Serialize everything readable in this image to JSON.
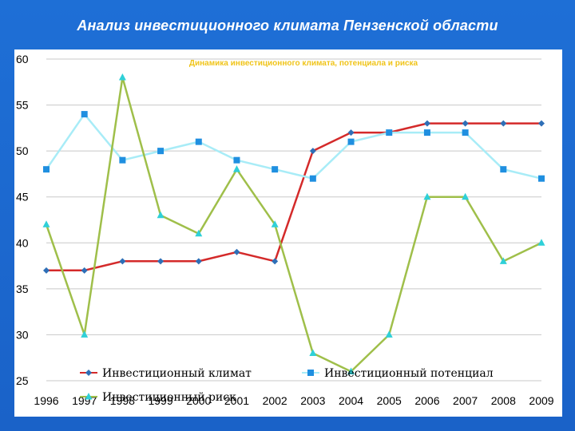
{
  "slide": {
    "title": "Анализ инвестиционного климата Пензенской области"
  },
  "chart_data": {
    "type": "line",
    "title": "",
    "subtitle": "Динамика инвестиционного климата, потенциала и риска",
    "xlabel": "",
    "ylabel": "",
    "ylim": [
      25,
      60
    ],
    "yticks": [
      25,
      30,
      35,
      40,
      45,
      50,
      55,
      60
    ],
    "grid": true,
    "legend_position": "bottom",
    "categories": [
      "1996",
      "1997",
      "1998",
      "1999",
      "2000",
      "2001",
      "2002",
      "2003",
      "2004",
      "2005",
      "2006",
      "2007",
      "2008",
      "2009"
    ],
    "series": [
      {
        "name": "Инвестиционный климат",
        "color": "#d42a2a",
        "marker_color": "#2e6fb7",
        "marker": "diamond",
        "values": [
          37,
          37,
          38,
          38,
          38,
          39,
          38,
          50,
          52,
          52,
          53,
          53,
          53,
          53
        ]
      },
      {
        "name": "Инвестиционный потенциал",
        "color": "#a8ecf7",
        "marker_color": "#1f8fe0",
        "marker": "square",
        "values": [
          48,
          54,
          49,
          50,
          51,
          49,
          48,
          47,
          51,
          52,
          52,
          52,
          48,
          47
        ]
      },
      {
        "name": "Инвестиционный риск",
        "color": "#9fbf4a",
        "marker_color": "#2fd0d8",
        "marker": "triangle",
        "values": [
          42,
          30,
          58,
          43,
          41,
          48,
          42,
          28,
          26,
          30,
          45,
          45,
          38,
          40
        ]
      }
    ]
  }
}
